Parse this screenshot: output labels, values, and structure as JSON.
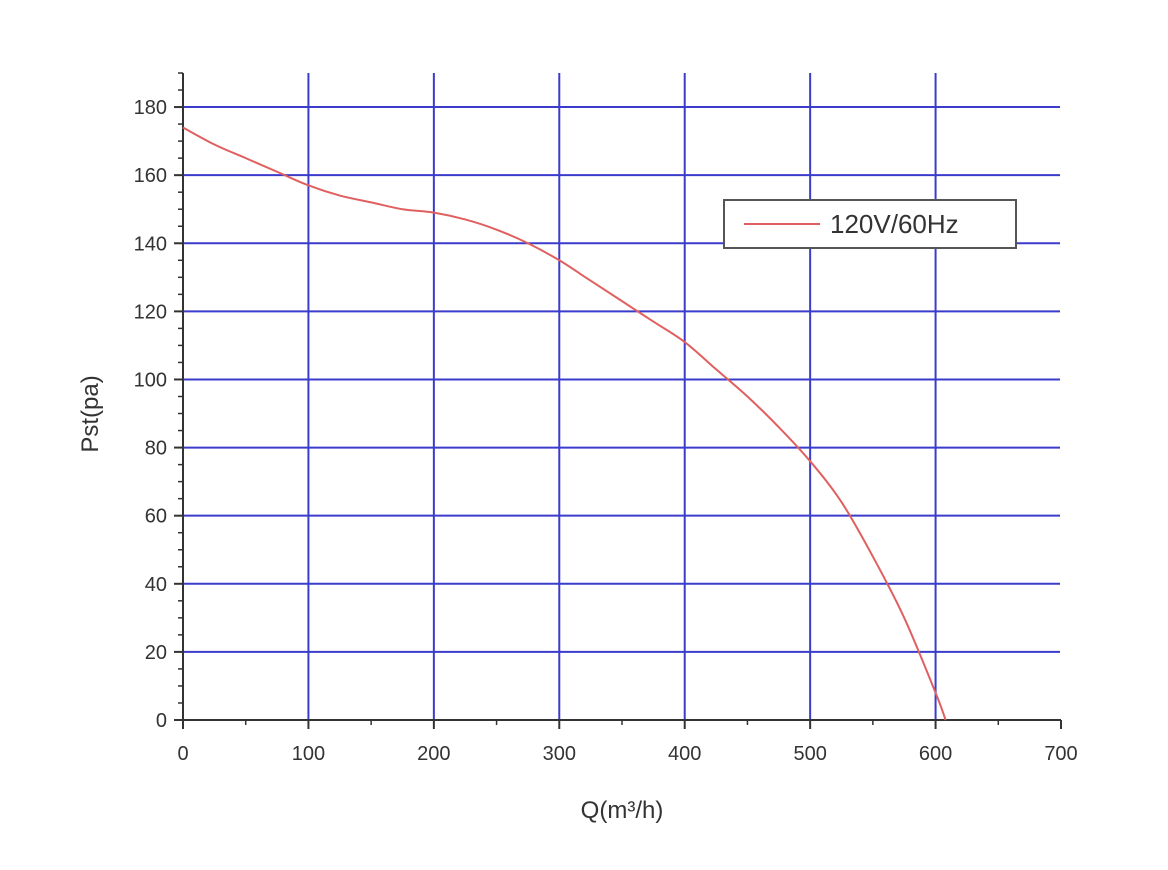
{
  "chart_data": {
    "type": "line",
    "title": "",
    "xlabel": "Q(m³/h)",
    "ylabel": "Pst(pa)",
    "xlim": [
      0,
      700
    ],
    "ylim": [
      0,
      190
    ],
    "xticks": [
      0,
      100,
      200,
      300,
      400,
      500,
      600,
      700
    ],
    "yticks": [
      0,
      20,
      40,
      60,
      80,
      100,
      120,
      140,
      160,
      180
    ],
    "grid": true,
    "legend_position": "top-right",
    "series": [
      {
        "name": "120V/60Hz",
        "color": "#e06060",
        "x": [
          0,
          25,
          50,
          75,
          100,
          125,
          150,
          175,
          200,
          225,
          250,
          275,
          300,
          325,
          350,
          375,
          400,
          425,
          450,
          475,
          500,
          525,
          550,
          575,
          600,
          608
        ],
        "y": [
          174,
          169,
          165,
          161,
          157,
          154,
          152,
          150,
          149,
          147,
          144,
          140,
          135,
          129,
          123,
          117,
          111,
          103,
          95,
          86,
          76,
          64,
          48,
          30,
          8,
          0
        ]
      }
    ]
  },
  "style": {
    "grid_color": "#3b3bcc",
    "axis_color": "#333333",
    "background": "#ffffff"
  }
}
